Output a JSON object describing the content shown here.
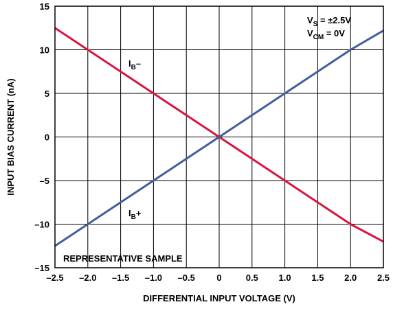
{
  "chart_data": {
    "type": "line",
    "xlabel": "DIFFERENTIAL INPUT VOLTAGE (V)",
    "ylabel": "INPUT BIAS CURRENT (nA)",
    "xlim": [
      -2.5,
      2.5
    ],
    "ylim": [
      -15,
      15
    ],
    "x_ticks": [
      -2.5,
      -2.0,
      -1.5,
      -1.0,
      -0.5,
      0,
      0.5,
      1.0,
      1.5,
      2.0,
      2.5
    ],
    "x_tick_labels": [
      "–2.5",
      "–2.0",
      "–1.5",
      "–1.0",
      "–0.5",
      "0",
      "0.5",
      "1.0",
      "1.5",
      "2.0",
      "2.5"
    ],
    "y_ticks": [
      -15,
      -10,
      -5,
      0,
      5,
      10,
      15
    ],
    "y_tick_labels": [
      "–15",
      "–10",
      "–5",
      "0",
      "5",
      "10",
      "15"
    ],
    "grid": true,
    "series": [
      {
        "name": "IB–",
        "name_main": "I",
        "name_sub": "B",
        "name_suffix": "–",
        "color": "#d9143f",
        "x": [
          -2.5,
          -2.0,
          -1.5,
          -1.0,
          -0.5,
          0,
          0.5,
          1.0,
          1.5,
          2.0,
          2.5
        ],
        "y": [
          12.5,
          10.0,
          7.5,
          5.0,
          2.5,
          0,
          -2.5,
          -5.0,
          -7.5,
          -10.0,
          -12.0
        ]
      },
      {
        "name": "IB+",
        "name_main": "I",
        "name_sub": "B",
        "name_suffix": "+",
        "color": "#3d5f9e",
        "x": [
          -2.5,
          -2.0,
          -1.5,
          -1.0,
          -0.5,
          0,
          0.5,
          1.0,
          1.5,
          2.0,
          2.5
        ],
        "y": [
          -12.5,
          -10.0,
          -7.5,
          -5.0,
          -2.5,
          0,
          2.5,
          5.0,
          7.5,
          10.0,
          12.2
        ]
      }
    ],
    "conditions": [
      {
        "main": "V",
        "sub": "S",
        "rest": " = ±2.5V"
      },
      {
        "main": "V",
        "sub": "CM",
        "rest": " = 0V"
      }
    ],
    "note": "REPRESENTATIVE SAMPLE"
  }
}
